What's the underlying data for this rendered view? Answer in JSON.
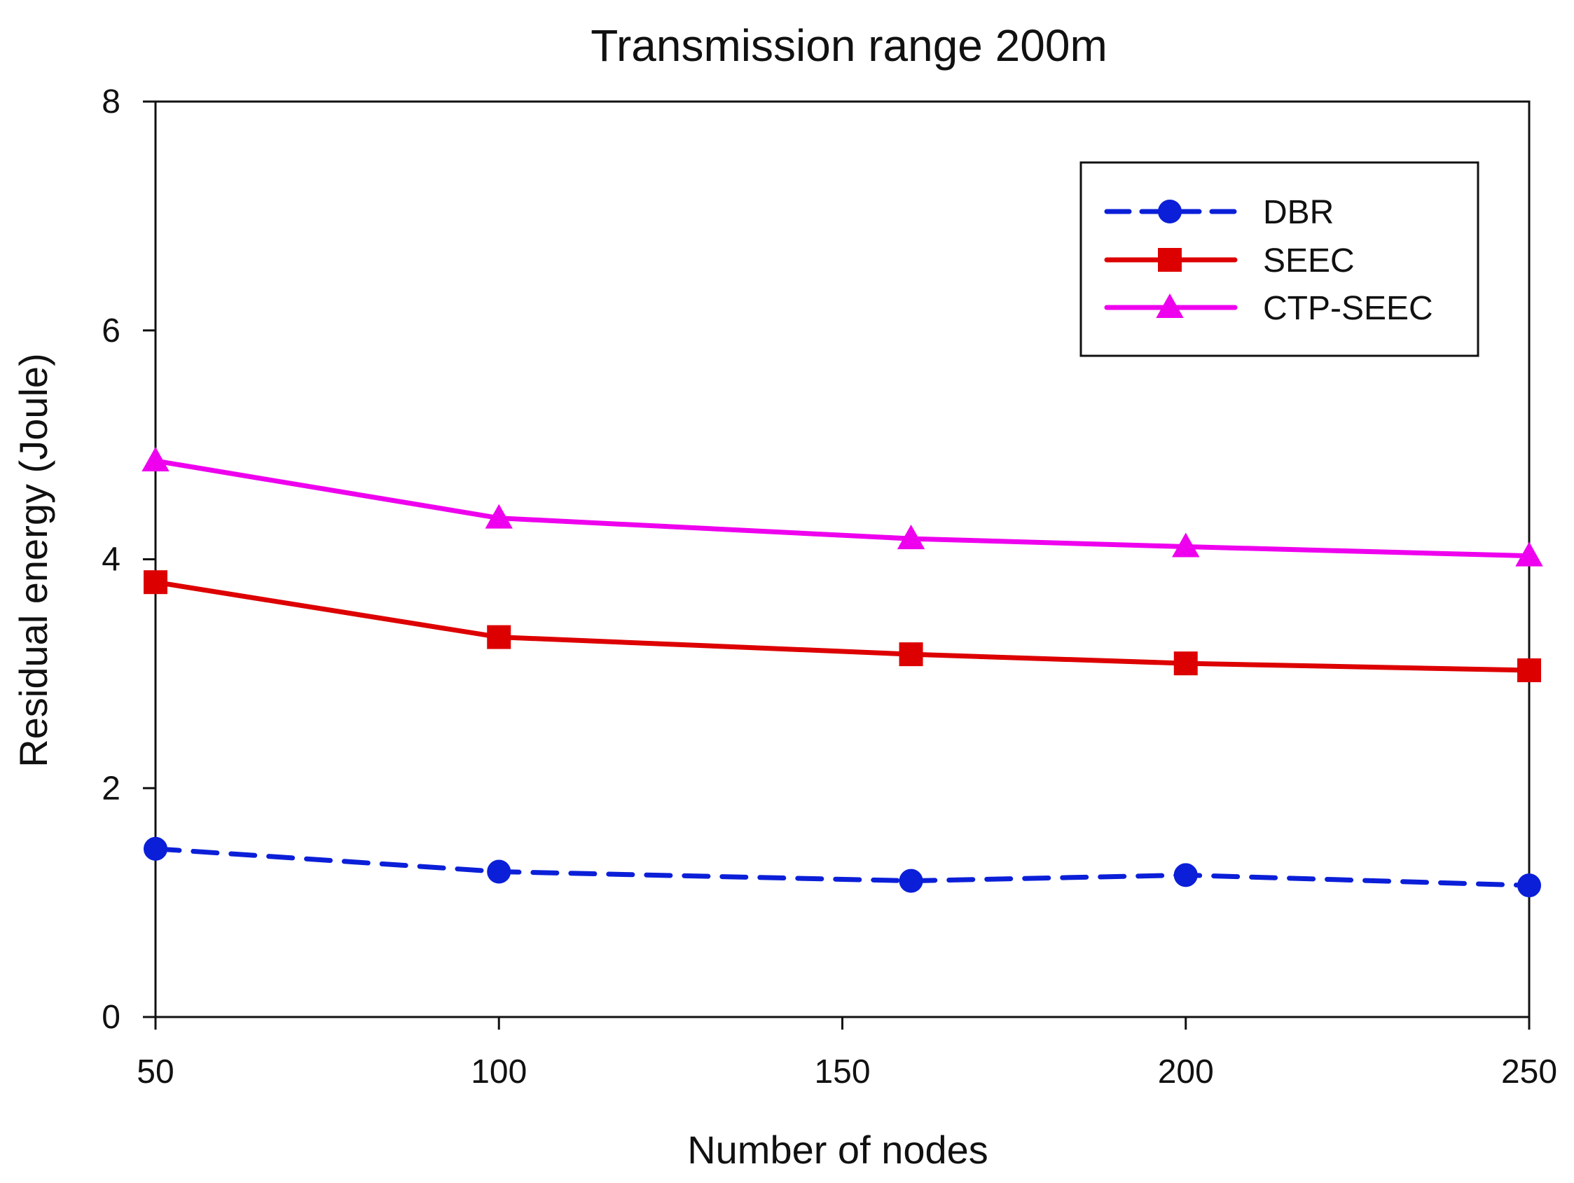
{
  "chart_data": {
    "type": "line",
    "title": "Transmission range 200m",
    "xlabel": "Number of nodes",
    "ylabel": "Residual energy (Joule)",
    "x": [
      50,
      100,
      160,
      200,
      250
    ],
    "xlim": [
      50,
      250
    ],
    "ylim": [
      0,
      8
    ],
    "xticks": [
      50,
      100,
      150,
      200,
      250
    ],
    "yticks": [
      0,
      2,
      4,
      6,
      8
    ],
    "xtick_labels": [
      "50",
      "100",
      "150",
      "200",
      "250"
    ],
    "ytick_labels": [
      "0",
      "2",
      "4",
      "6",
      "8"
    ],
    "grid": false,
    "legend": {
      "position": "top-right",
      "entries": [
        "DBR",
        "SEEC",
        "CTP-SEEC"
      ]
    },
    "series": [
      {
        "name": "DBR",
        "values": [
          1.47,
          1.27,
          1.19,
          1.24,
          1.15
        ],
        "color": "#0b1fd8",
        "marker": "circle",
        "line_style": "dashed"
      },
      {
        "name": "SEEC",
        "values": [
          3.8,
          3.32,
          3.17,
          3.09,
          3.03
        ],
        "color": "#dd0000",
        "marker": "square",
        "line_style": "solid"
      },
      {
        "name": "CTP-SEEC",
        "values": [
          4.86,
          4.36,
          4.18,
          4.11,
          4.03
        ],
        "color": "#ee00ee",
        "marker": "triangle",
        "line_style": "solid"
      }
    ]
  }
}
